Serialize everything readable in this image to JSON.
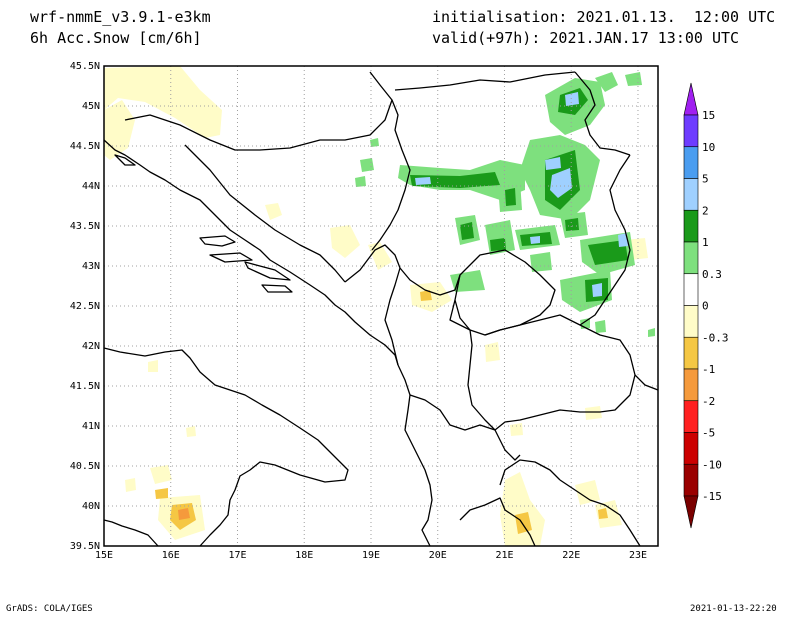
{
  "header": {
    "model": "wrf-nmmE_v3.9.1-e3km",
    "field": "6h Acc.Snow [cm/6h]",
    "init": "initialisation: 2021.01.13.  12:00 UTC",
    "valid": "valid(+97h): 2021.JAN.17 13:00 UTC"
  },
  "map": {
    "lon_range": [
      15,
      23.3
    ],
    "lat_range": [
      39.5,
      45.5
    ],
    "lat_ticks": [
      "39.5N",
      "40N",
      "40.5N",
      "41N",
      "41.5N",
      "42N",
      "42.5N",
      "43N",
      "43.5N",
      "44N",
      "44.5N",
      "45N",
      "45.5N"
    ],
    "lon_ticks": [
      "15E",
      "16E",
      "17E",
      "18E",
      "19E",
      "20E",
      "21E",
      "22E",
      "23E"
    ],
    "gridlines": true,
    "frame_color": "#000000"
  },
  "colorbar": {
    "labels": [
      "15",
      "10",
      "5",
      "2",
      "1",
      "0.3",
      "0",
      "-0.3",
      "-1",
      "-2",
      "-5",
      "-10",
      "-15"
    ],
    "colors": [
      "#6e3cff",
      "#4a9df0",
      "#9fd0ff",
      "#1a9a1a",
      "#7ee07e",
      "#ffffff",
      "#fffcc8",
      "#f5c744",
      "#f59a3c",
      "#ff2020",
      "#cc0000",
      "#9a0000"
    ],
    "top_arrow_color": "#a020f0",
    "bottom_arrow_color": "#7a0000"
  },
  "footer": {
    "left": "GrADS: COLA/IGES",
    "right": "2021-01-13-22:20"
  }
}
